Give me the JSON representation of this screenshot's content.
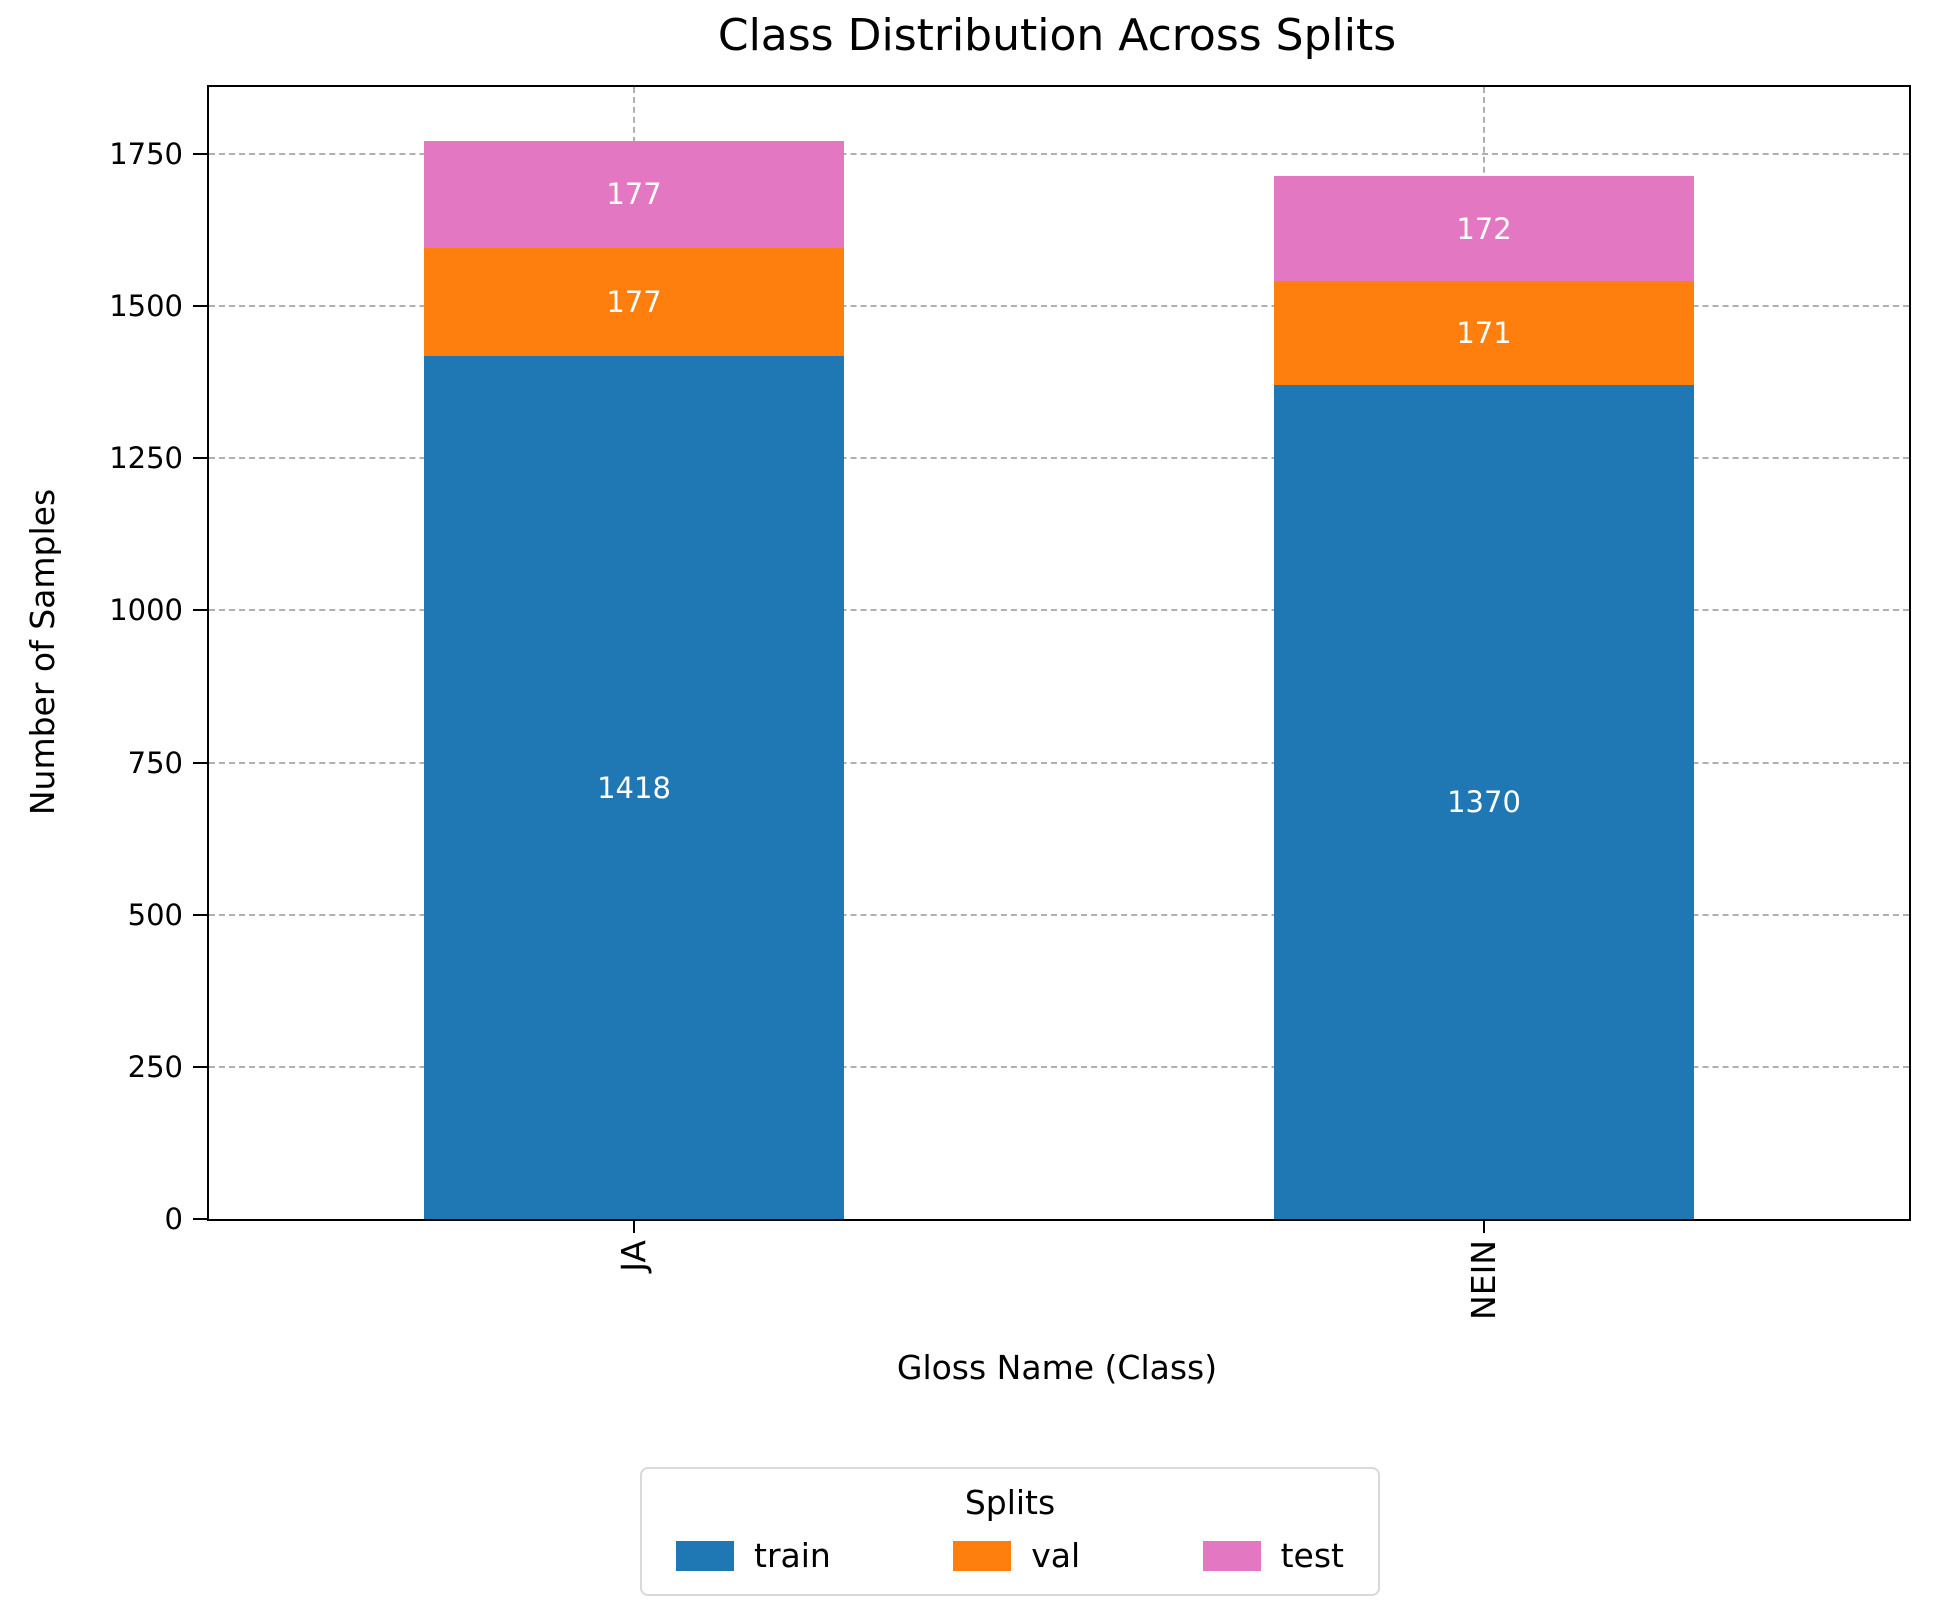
{
  "chart_data": {
    "type": "bar",
    "stacked": true,
    "title": "Class Distribution Across Splits",
    "xlabel": "Gloss Name (Class)",
    "ylabel": "Number of Samples",
    "categories": [
      "JA",
      "NEIN"
    ],
    "series": [
      {
        "name": "train",
        "color": "#1f77b4",
        "values": [
          1418,
          1370
        ]
      },
      {
        "name": "val",
        "color": "#ff7f0e",
        "values": [
          177,
          171
        ]
      },
      {
        "name": "test",
        "color": "#e377c2",
        "values": [
          177,
          172
        ]
      }
    ],
    "bar_value_labels": [
      [
        "1418",
        "177",
        "177"
      ],
      [
        "1370",
        "171",
        "172"
      ]
    ],
    "yticks": [
      0,
      250,
      500,
      750,
      1000,
      1250,
      1500,
      1750
    ],
    "ylim": [
      0,
      1860
    ],
    "grid": true,
    "grid_style": "dashed",
    "xtick_rotation": 90,
    "legend": {
      "title": "Splits",
      "entries": [
        "train",
        "val",
        "test"
      ],
      "position": "below-center"
    },
    "bar_label_color": "#ffffff"
  },
  "colors": {
    "grid": "#b0b0b0",
    "spine": "#000000",
    "text": "#000000",
    "legend_border": "#d9d9d9",
    "background": "#ffffff"
  }
}
